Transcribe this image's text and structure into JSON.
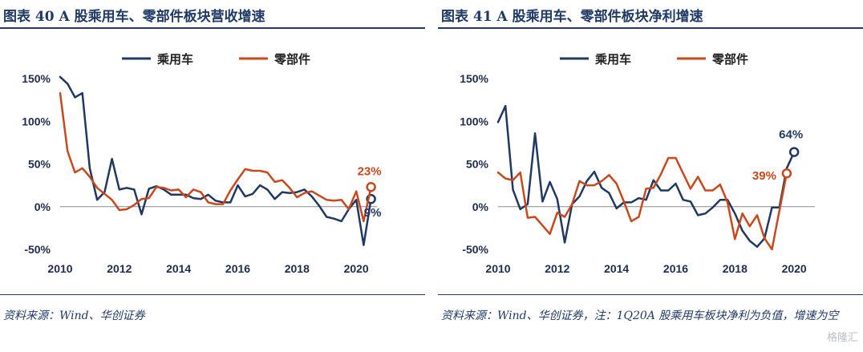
{
  "colors": {
    "passenger": "#1f3864",
    "parts": "#c9481c",
    "axis": "#333333"
  },
  "watermark": "格隆汇",
  "charts": [
    {
      "title": "图表 40 A 股乘用车、零部件板块营收增速",
      "source": "资料来源：Wind、华创证券",
      "chart_data": {
        "type": "line",
        "xlim": [
          2010,
          2020.7
        ],
        "ylim": [
          -50,
          150
        ],
        "x_ticks": [
          2010,
          2012,
          2014,
          2016,
          2018,
          2020
        ],
        "y_ticks": [
          150,
          100,
          50,
          0,
          -50
        ],
        "y_tick_labels": [
          "150%",
          "100%",
          "50%",
          "0%",
          "-50%"
        ],
        "legend": "top-center",
        "series": [
          {
            "name": "乘用车",
            "color": "#1f3864",
            "points": [
              [
                2010.0,
                152
              ],
              [
                2010.25,
                144
              ],
              [
                2010.5,
                128
              ],
              [
                2010.75,
                133
              ],
              [
                2011.0,
                45
              ],
              [
                2011.25,
                8
              ],
              [
                2011.5,
                17
              ],
              [
                2011.75,
                56
              ],
              [
                2012.0,
                20
              ],
              [
                2012.25,
                22
              ],
              [
                2012.5,
                20
              ],
              [
                2012.75,
                -9
              ],
              [
                2013.0,
                21
              ],
              [
                2013.25,
                24
              ],
              [
                2013.5,
                20
              ],
              [
                2013.75,
                14
              ],
              [
                2014.0,
                14
              ],
              [
                2014.25,
                14
              ],
              [
                2014.5,
                10
              ],
              [
                2014.75,
                9
              ],
              [
                2015.0,
                14
              ],
              [
                2015.25,
                7
              ],
              [
                2015.5,
                5
              ],
              [
                2015.75,
                5
              ],
              [
                2016.0,
                25
              ],
              [
                2016.25,
                12
              ],
              [
                2016.5,
                15
              ],
              [
                2016.75,
                25
              ],
              [
                2017.0,
                20
              ],
              [
                2017.25,
                9
              ],
              [
                2017.5,
                17
              ],
              [
                2017.75,
                16
              ],
              [
                2018.0,
                17
              ],
              [
                2018.25,
                20
              ],
              [
                2018.5,
                12
              ],
              [
                2018.75,
                1
              ],
              [
                2019.0,
                -12
              ],
              [
                2019.25,
                -14
              ],
              [
                2019.5,
                -17
              ],
              [
                2019.75,
                -3
              ],
              [
                2020.0,
                8
              ],
              [
                2020.25,
                -45
              ],
              [
                2020.5,
                9
              ]
            ],
            "end_label": "9%"
          },
          {
            "name": "零部件",
            "color": "#c9481c",
            "points": [
              [
                2010.0,
                133
              ],
              [
                2010.25,
                65
              ],
              [
                2010.5,
                40
              ],
              [
                2010.75,
                45
              ],
              [
                2011.0,
                35
              ],
              [
                2011.25,
                22
              ],
              [
                2011.5,
                15
              ],
              [
                2011.75,
                8
              ],
              [
                2012.0,
                -4
              ],
              [
                2012.25,
                -3
              ],
              [
                2012.5,
                2
              ],
              [
                2012.75,
                9
              ],
              [
                2013.0,
                10
              ],
              [
                2013.25,
                23
              ],
              [
                2013.5,
                22
              ],
              [
                2013.75,
                19
              ],
              [
                2014.0,
                20
              ],
              [
                2014.25,
                11
              ],
              [
                2014.5,
                20
              ],
              [
                2014.75,
                17
              ],
              [
                2015.0,
                5
              ],
              [
                2015.25,
                3
              ],
              [
                2015.5,
                3
              ],
              [
                2015.75,
                19
              ],
              [
                2016.0,
                32
              ],
              [
                2016.25,
                44
              ],
              [
                2016.5,
                42
              ],
              [
                2016.75,
                42
              ],
              [
                2017.0,
                40
              ],
              [
                2017.25,
                29
              ],
              [
                2017.5,
                31
              ],
              [
                2017.75,
                22
              ],
              [
                2018.0,
                11
              ],
              [
                2018.25,
                16
              ],
              [
                2018.5,
                18
              ],
              [
                2018.75,
                13
              ],
              [
                2019.0,
                8
              ],
              [
                2019.25,
                7
              ],
              [
                2019.5,
                8
              ],
              [
                2019.75,
                -3
              ],
              [
                2020.0,
                18
              ],
              [
                2020.25,
                -17
              ],
              [
                2020.5,
                23
              ]
            ],
            "end_label": "23%"
          }
        ]
      }
    },
    {
      "title": "图表 41 A 股乘用车、零部件板块净利增速",
      "source": "资料来源：Wind、华创证券，注：1Q20A 股乘用车板块净利为负值，增速为空",
      "chart_data": {
        "type": "line",
        "xlim": [
          2010,
          2020.7
        ],
        "ylim": [
          -50,
          150
        ],
        "x_ticks": [
          2010,
          2012,
          2014,
          2016,
          2018,
          2020
        ],
        "y_ticks": [
          150,
          100,
          50,
          0,
          -50
        ],
        "y_tick_labels": [
          "150%",
          "100%",
          "50%",
          "0%",
          "-50%"
        ],
        "legend": "top-center",
        "series": [
          {
            "name": "乘用车",
            "color": "#1f3864",
            "points": [
              [
                2010.0,
                99
              ],
              [
                2010.25,
                118
              ],
              [
                2010.5,
                20
              ],
              [
                2010.75,
                -3
              ],
              [
                2011.0,
                3
              ],
              [
                2011.25,
                86
              ],
              [
                2011.5,
                6
              ],
              [
                2011.75,
                29
              ],
              [
                2012.0,
                9
              ],
              [
                2012.25,
                -42
              ],
              [
                2012.5,
                3
              ],
              [
                2012.75,
                12
              ],
              [
                2013.0,
                30
              ],
              [
                2013.25,
                41
              ],
              [
                2013.5,
                22
              ],
              [
                2013.75,
                16
              ],
              [
                2014.0,
                -2
              ],
              [
                2014.25,
                5
              ],
              [
                2014.5,
                5
              ],
              [
                2014.75,
                10
              ],
              [
                2015.0,
                8
              ],
              [
                2015.25,
                31
              ],
              [
                2015.5,
                19
              ],
              [
                2015.75,
                19
              ],
              [
                2016.0,
                27
              ],
              [
                2016.25,
                8
              ],
              [
                2016.5,
                6
              ],
              [
                2016.75,
                -10
              ],
              [
                2017.0,
                -8
              ],
              [
                2017.25,
                -1
              ],
              [
                2017.5,
                8
              ],
              [
                2017.75,
                8
              ],
              [
                2018.0,
                -8
              ],
              [
                2018.25,
                -28
              ],
              [
                2018.5,
                -40
              ],
              [
                2018.75,
                -47
              ],
              [
                2019.0,
                -37
              ],
              [
                2019.25,
                -1
              ],
              [
                2019.5,
                -1
              ],
              [
                2019.75,
                45
              ],
              [
                2020.0,
                64
              ]
            ],
            "end_label": "64%"
          },
          {
            "name": "零部件",
            "color": "#c9481c",
            "points": [
              [
                2010.0,
                40
              ],
              [
                2010.25,
                33
              ],
              [
                2010.5,
                31
              ],
              [
                2010.75,
                40
              ],
              [
                2011.0,
                -13
              ],
              [
                2011.25,
                -12
              ],
              [
                2011.5,
                -22
              ],
              [
                2011.75,
                -32
              ],
              [
                2012.0,
                -7
              ],
              [
                2012.25,
                -12
              ],
              [
                2012.5,
                3
              ],
              [
                2012.75,
                30
              ],
              [
                2013.0,
                25
              ],
              [
                2013.25,
                25
              ],
              [
                2013.5,
                30
              ],
              [
                2013.75,
                37
              ],
              [
                2014.0,
                27
              ],
              [
                2014.25,
                6
              ],
              [
                2014.5,
                -17
              ],
              [
                2014.75,
                -12
              ],
              [
                2015.0,
                21
              ],
              [
                2015.25,
                22
              ],
              [
                2015.5,
                38
              ],
              [
                2015.75,
                57
              ],
              [
                2016.0,
                57
              ],
              [
                2016.25,
                39
              ],
              [
                2016.5,
                21
              ],
              [
                2016.75,
                35
              ],
              [
                2017.0,
                19
              ],
              [
                2017.25,
                19
              ],
              [
                2017.5,
                26
              ],
              [
                2017.75,
                5
              ],
              [
                2018.0,
                -38
              ],
              [
                2018.25,
                -8
              ],
              [
                2018.5,
                -23
              ],
              [
                2018.75,
                -10
              ],
              [
                2019.0,
                -37
              ],
              [
                2019.25,
                -50
              ],
              [
                2019.5,
                -5
              ],
              [
                2019.75,
                39
              ]
            ],
            "end_label": "39%"
          }
        ]
      }
    }
  ]
}
